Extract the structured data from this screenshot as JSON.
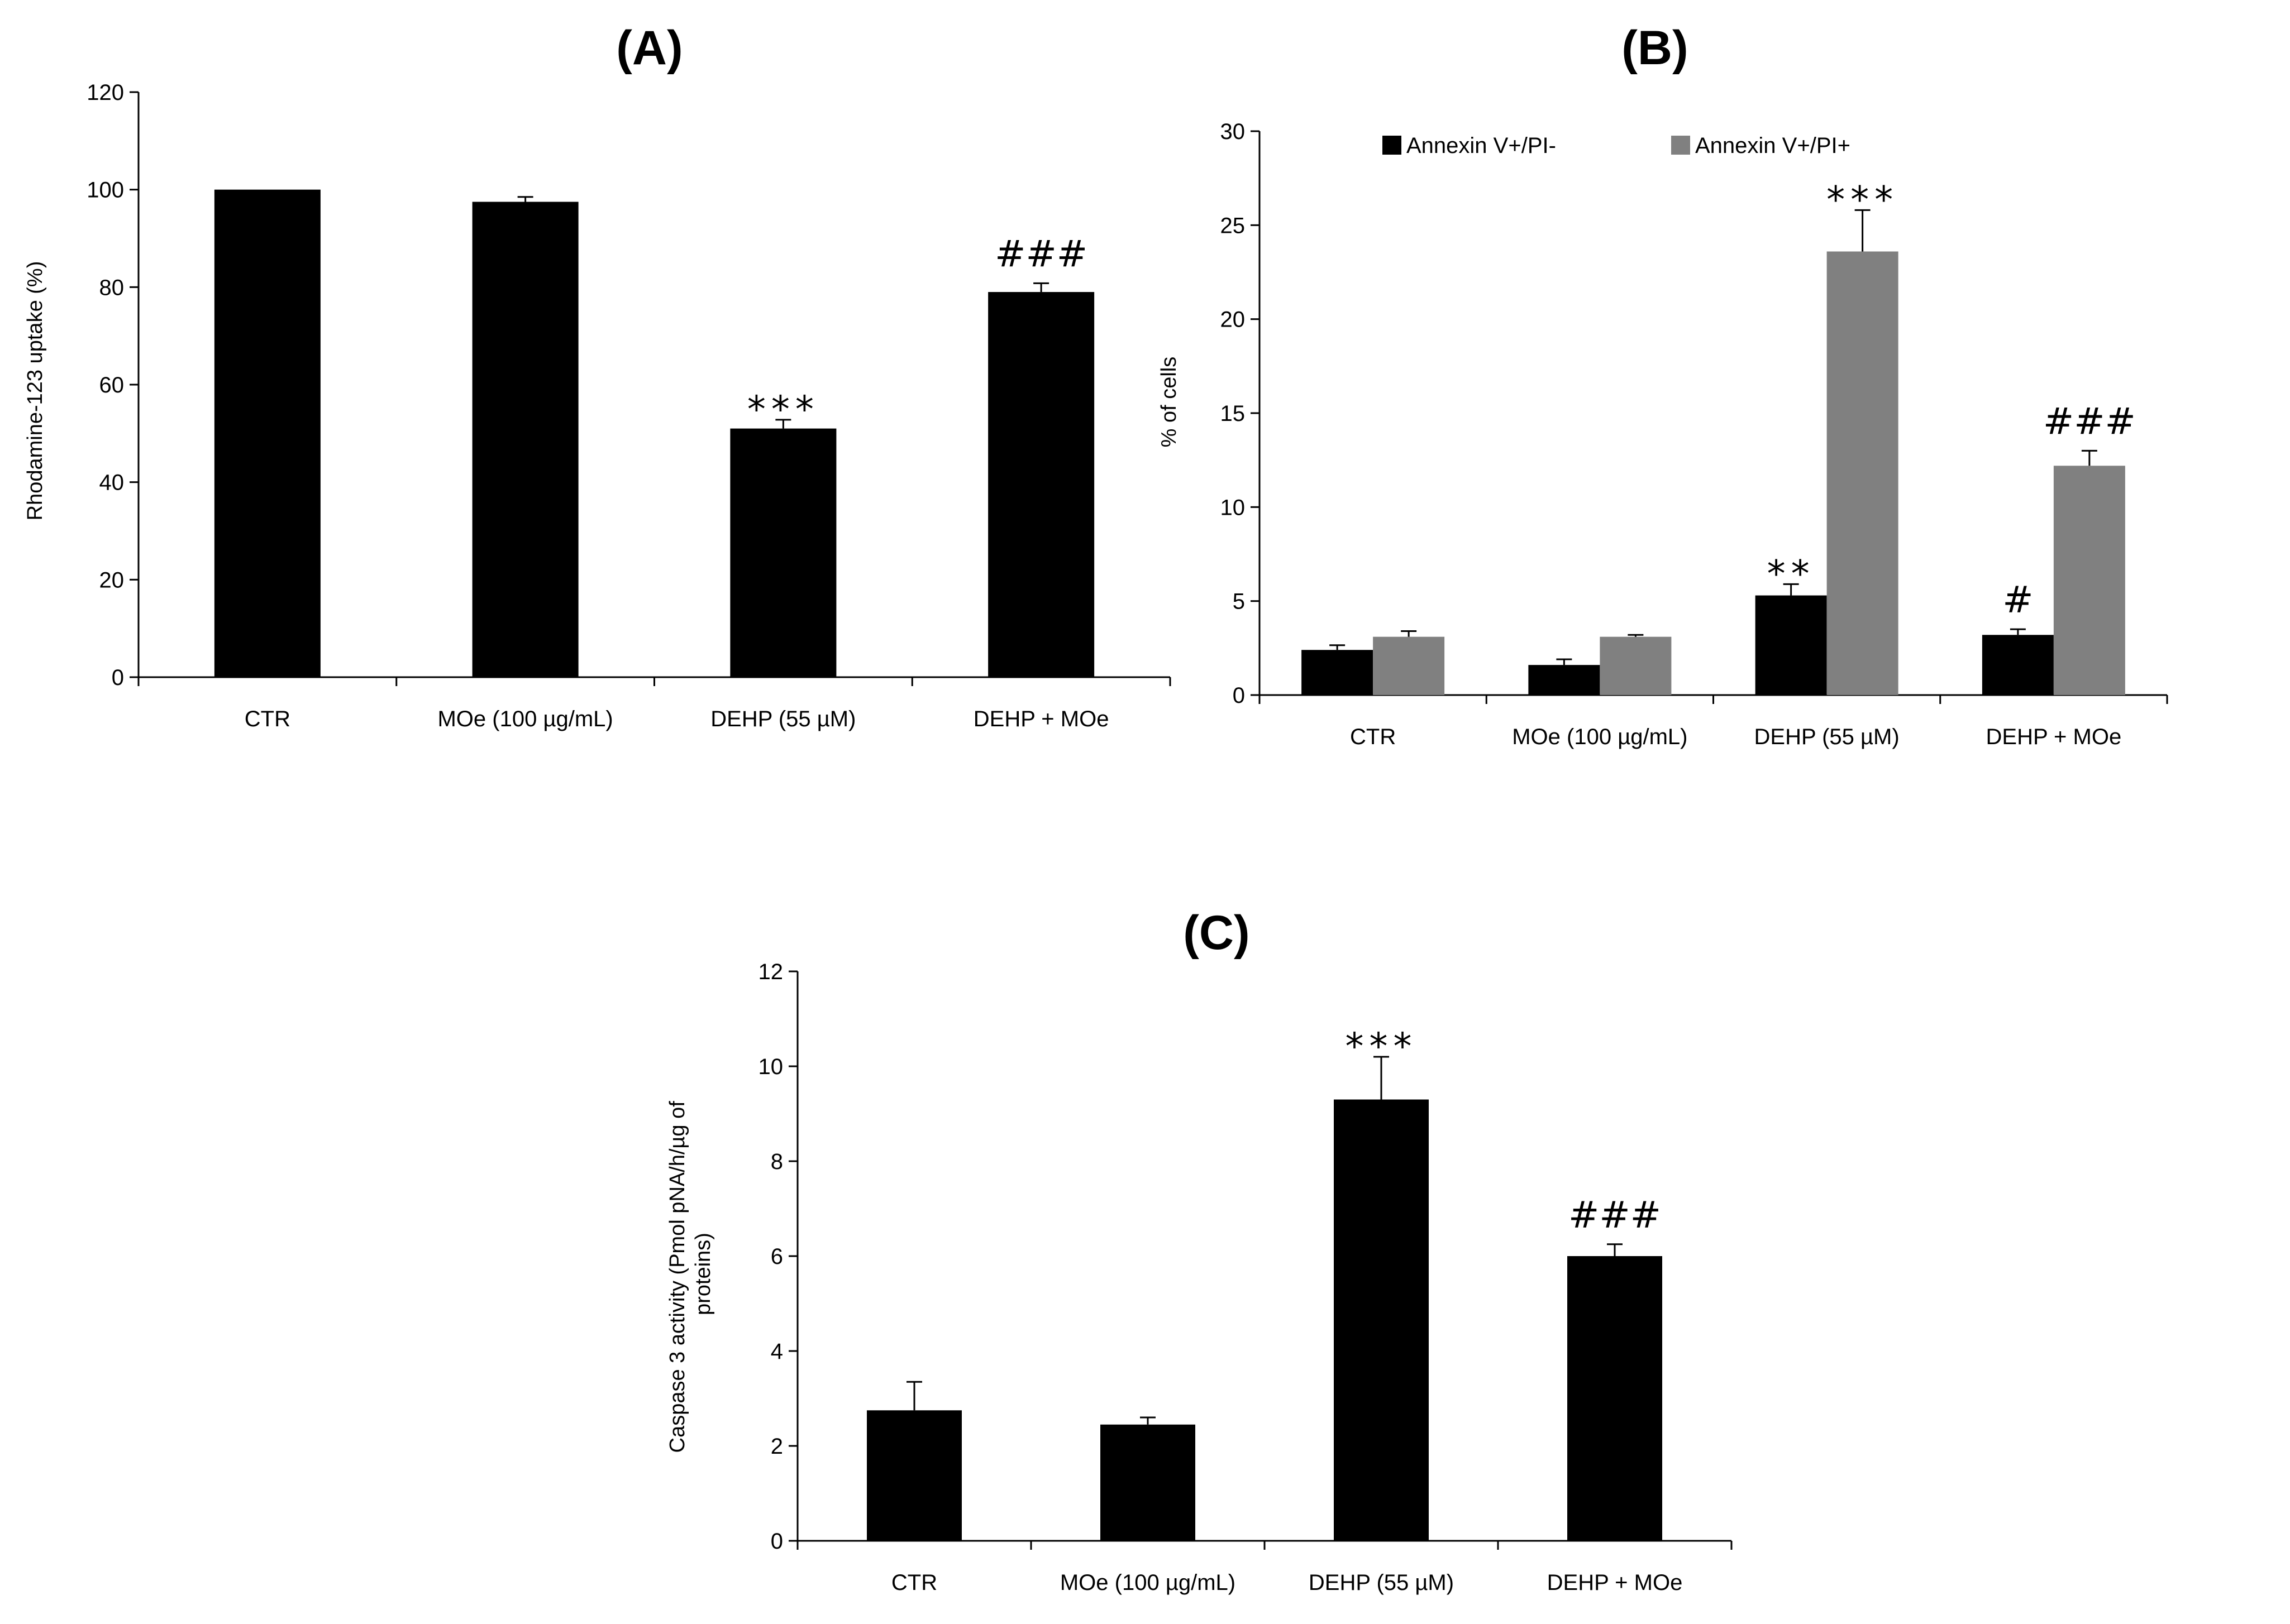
{
  "chart_data": [
    {
      "type": "bar",
      "title": "(A)",
      "xlabel": "",
      "ylabel": "Rhodamine-123 uptake (%)",
      "ylim": [
        0,
        120
      ],
      "yticks": [
        0,
        20,
        40,
        60,
        80,
        100,
        120
      ],
      "categories": [
        "CTR",
        "MOe (100 µg/mL)",
        "DEHP (55 µM)",
        "DEHP + MOe"
      ],
      "series": [
        {
          "name": "",
          "color": "#000000",
          "values": [
            100,
            97.5,
            51,
            79
          ],
          "errors": [
            0,
            1,
            1.8,
            1.8
          ]
        }
      ],
      "annotations": [
        {
          "category": 2,
          "series": 0,
          "text": "***"
        },
        {
          "category": 3,
          "series": 0,
          "text": "###"
        }
      ]
    },
    {
      "type": "bar",
      "title": "(B)",
      "xlabel": "",
      "ylabel": "% of cells",
      "ylim": [
        0,
        30
      ],
      "yticks": [
        0,
        5,
        10,
        15,
        20,
        25,
        30
      ],
      "categories": [
        "CTR",
        "MOe (100 µg/mL)",
        "DEHP (55 µM)",
        "DEHP + MOe"
      ],
      "legend": "top",
      "series": [
        {
          "name": "Annexin V+/PI-",
          "color": "#000000",
          "values": [
            2.4,
            1.6,
            5.3,
            3.2
          ],
          "errors": [
            0.25,
            0.3,
            0.6,
            0.3
          ]
        },
        {
          "name": "Annexin V+/PI+",
          "color": "#808080",
          "values": [
            3.1,
            3.1,
            23.6,
            12.2
          ],
          "errors": [
            0.3,
            0.1,
            2.2,
            0.8
          ]
        }
      ],
      "annotations": [
        {
          "category": 2,
          "series": 0,
          "text": "**"
        },
        {
          "category": 2,
          "series": 1,
          "text": "***"
        },
        {
          "category": 3,
          "series": 0,
          "text": "#"
        },
        {
          "category": 3,
          "series": 1,
          "text": "###"
        }
      ]
    },
    {
      "type": "bar",
      "title": "(C)",
      "xlabel": "",
      "ylabel": "Caspase 3 activity (Pmol pNA/h/µg of proteins)",
      "ylabel_lines": [
        "Caspase 3 activity (Pmol pNA/h/µg of",
        "proteins)"
      ],
      "ylim": [
        0,
        12
      ],
      "yticks": [
        0,
        2,
        4,
        6,
        8,
        10,
        12
      ],
      "categories": [
        "CTR",
        "MOe (100 µg/mL)",
        "DEHP (55 µM)",
        "DEHP + MOe"
      ],
      "series": [
        {
          "name": "",
          "color": "#000000",
          "values": [
            2.75,
            2.45,
            9.3,
            6.0
          ],
          "errors": [
            0.6,
            0.15,
            0.9,
            0.25
          ]
        }
      ],
      "annotations": [
        {
          "category": 2,
          "series": 0,
          "text": "***"
        },
        {
          "category": 3,
          "series": 0,
          "text": "###"
        }
      ]
    }
  ]
}
